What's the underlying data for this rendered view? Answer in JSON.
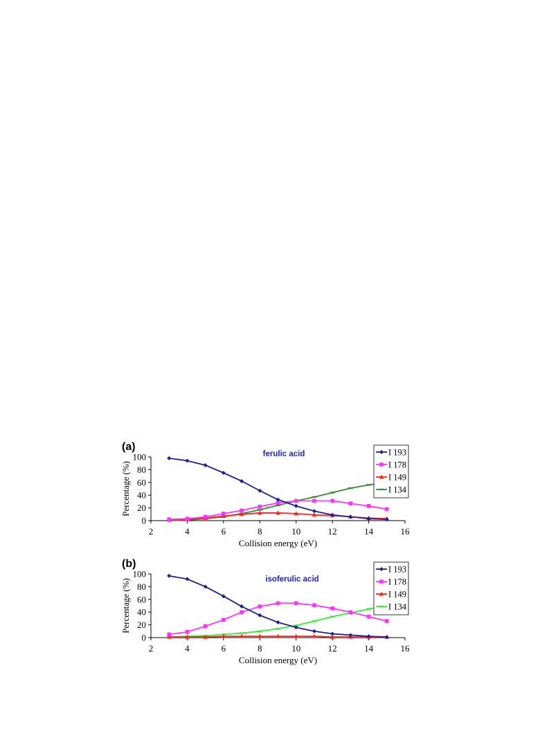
{
  "chart_data": [
    {
      "type": "line",
      "panel": "(a)",
      "title": "ferulic acid",
      "xlabel": "Collision energy (eV)",
      "ylabel": "Percentage (%)",
      "xlim": [
        2,
        16
      ],
      "ylim": [
        0,
        100
      ],
      "xticks": [
        "2",
        "4",
        "6",
        "8",
        "10",
        "12",
        "14",
        "16"
      ],
      "yticks": [
        "0",
        "20",
        "40",
        "60",
        "80",
        "100"
      ],
      "grid": false,
      "legend": "top-right",
      "x": [
        3,
        4,
        5,
        6,
        7,
        8,
        9,
        10,
        11,
        12,
        13,
        14,
        15
      ],
      "series": [
        {
          "name": "I 193",
          "color": "#1f1f8f",
          "marker": "diamond",
          "values": [
            98,
            94,
            87,
            75,
            62,
            47,
            33,
            23,
            15,
            9,
            6,
            3,
            2
          ]
        },
        {
          "name": "I 178",
          "color": "#ff33ff",
          "marker": "square",
          "values": [
            2,
            3,
            6,
            11,
            16,
            22,
            28,
            31,
            31,
            31,
            27,
            23,
            18
          ]
        },
        {
          "name": "I 149",
          "color": "#ff2020",
          "marker": "triangle",
          "values": [
            1,
            2,
            4,
            7,
            10,
            12,
            12,
            11,
            9,
            8,
            6,
            4,
            3
          ]
        },
        {
          "name": "I 134",
          "color": "#3a8a3a",
          "marker": "dash",
          "values": [
            0,
            1,
            3,
            6,
            11,
            17,
            24,
            31,
            37,
            44,
            51,
            56,
            60
          ]
        }
      ]
    },
    {
      "type": "line",
      "panel": "(b)",
      "title": "isoferulic acid",
      "xlabel": "Collision energy (eV)",
      "ylabel": "Percentage (%)",
      "xlim": [
        2,
        16
      ],
      "ylim": [
        0,
        100
      ],
      "xticks": [
        "2",
        "4",
        "6",
        "8",
        "10",
        "12",
        "14",
        "16"
      ],
      "yticks": [
        "0",
        "20",
        "40",
        "60",
        "80",
        "100"
      ],
      "grid": false,
      "legend": "top-right",
      "x": [
        3,
        4,
        5,
        6,
        7,
        8,
        9,
        10,
        11,
        12,
        13,
        14,
        15
      ],
      "series": [
        {
          "name": "I 193",
          "color": "#1f1f8f",
          "marker": "diamond",
          "values": [
            97,
            92,
            80,
            65,
            49,
            35,
            24,
            16,
            10,
            6,
            4,
            2,
            1
          ]
        },
        {
          "name": "I 178",
          "color": "#ff33ff",
          "marker": "square",
          "values": [
            5,
            9,
            18,
            28,
            40,
            49,
            54,
            54,
            51,
            46,
            40,
            33,
            26
          ]
        },
        {
          "name": "I 149",
          "color": "#ff2020",
          "marker": "triangle",
          "values": [
            1,
            1,
            1,
            2,
            2,
            2,
            2,
            2,
            2,
            1,
            1,
            1,
            1
          ]
        },
        {
          "name": "I 134",
          "color": "#33ee33",
          "marker": "dash",
          "values": [
            1,
            2,
            3,
            5,
            7,
            10,
            14,
            19,
            26,
            33,
            39,
            45,
            50
          ]
        }
      ]
    }
  ]
}
